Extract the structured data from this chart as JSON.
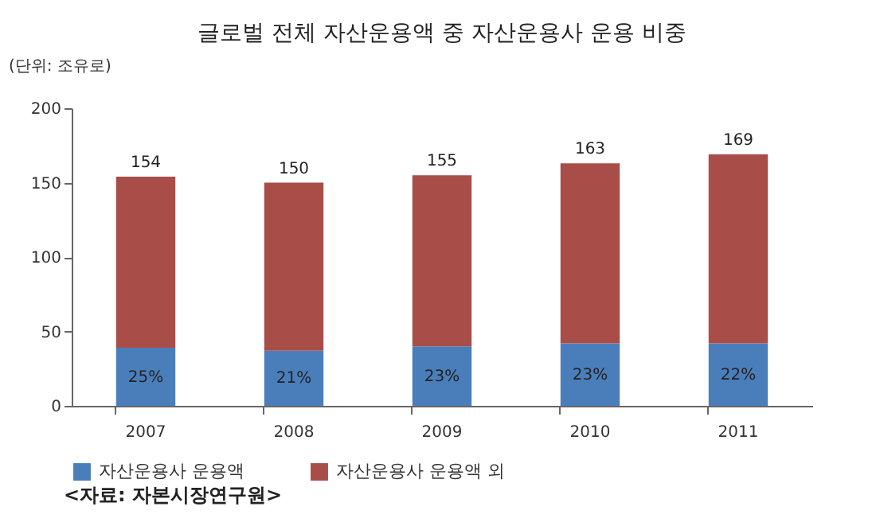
{
  "chart_data": {
    "type": "bar",
    "title": "글로벌 전체 자산운용액 중 자산운용사 운용 비중",
    "ylabel": "(단위: 조유로)",
    "categories": [
      "2007",
      "2008",
      "2009",
      "2010",
      "2011"
    ],
    "stacked": true,
    "ylim": [
      0,
      200
    ],
    "yticks": [
      0,
      50,
      100,
      150,
      200
    ],
    "legend": "bottom",
    "totals": [
      "154",
      "150",
      "155",
      "163",
      "169"
    ],
    "annotations": [
      "<자료: 자본시장연구원>",
      {
        "text": "25%",
        "x": "2007",
        "y": 39
      },
      {
        "text": "21%",
        "x": "2008",
        "y": 37
      },
      {
        "text": "23%",
        "x": "2009",
        "y": 40
      },
      {
        "text": "23%",
        "x": "2010",
        "y": 42
      },
      {
        "text": "22%",
        "x": "2011",
        "y": 42
      }
    ],
    "series": [
      {
        "name": "자산운용사 운용액",
        "color": "#4a7ebb",
        "values": [
          39,
          37,
          40,
          42,
          42
        ]
      },
      {
        "name": "자산운용사 운용액 외",
        "color": "#a84d48",
        "values": [
          115,
          113,
          115,
          121,
          127
        ]
      }
    ]
  }
}
